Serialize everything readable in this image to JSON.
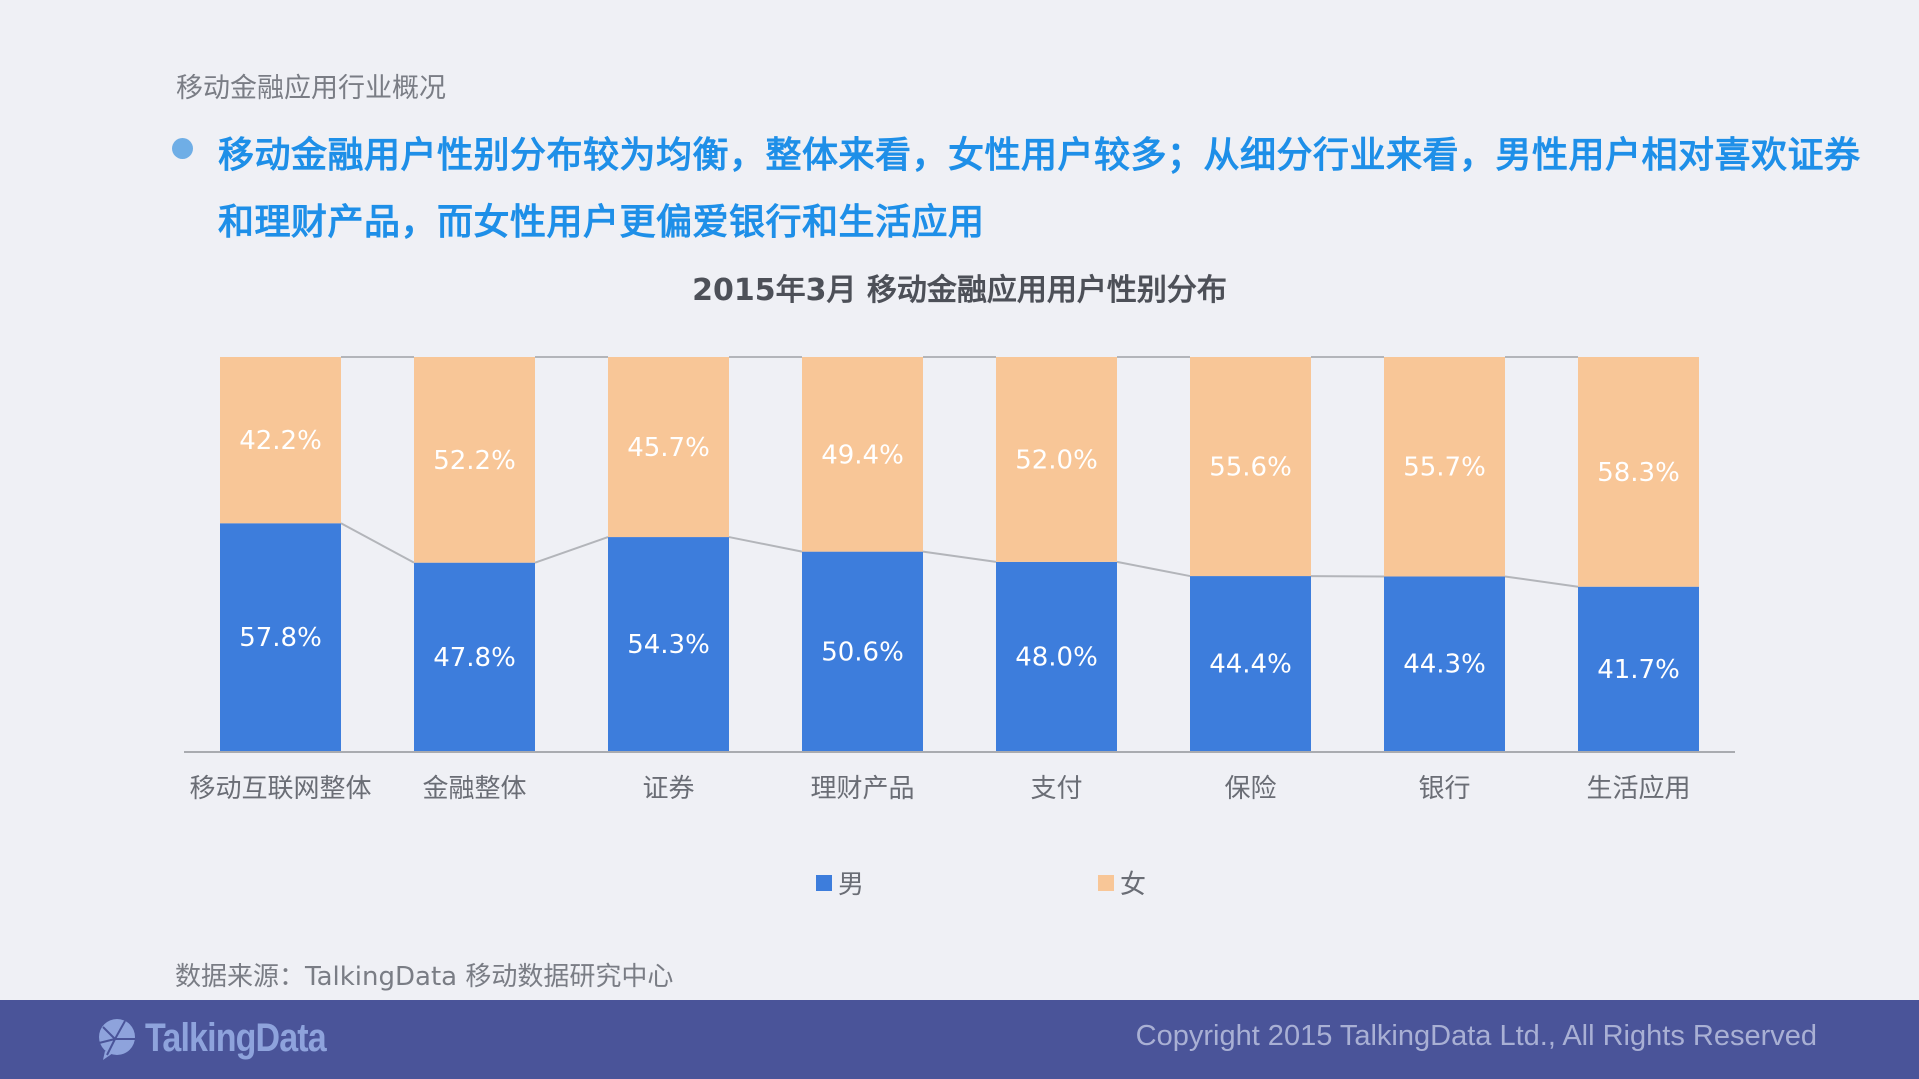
{
  "section_title": "移动金融应用行业概况",
  "headline": "移动金融用户性别分布较为均衡，整体来看，女性用户较多；从细分行业来看，男性用户相对喜欢证券和理财产品，而女性用户更偏爱银行和生活应用",
  "source": "数据来源：TalkingData 移动数据研究中心",
  "footer": {
    "logo": "TalkingData",
    "copyright": "Copyright 2015 TalkingData Ltd., All Rights Reserved"
  },
  "colors": {
    "male": "#3d7ddc",
    "female": "#f8c697",
    "accent": "#1e8fe8",
    "footer": "#4a5499"
  },
  "chart_data": {
    "type": "bar",
    "stacked": true,
    "percent": true,
    "title": "2015年3月 移动金融应用用户性别分布",
    "categories": [
      "移动互联网整体",
      "金融整体",
      "证券",
      "理财产品",
      "支付",
      "保险",
      "银行",
      "生活应用"
    ],
    "series": [
      {
        "name": "男",
        "values": [
          57.8,
          47.8,
          54.3,
          50.6,
          48.0,
          44.4,
          44.3,
          41.7
        ],
        "labels": [
          "57.8%",
          "47.8%",
          "54.3%",
          "50.6%",
          "48.0%",
          "44.4%",
          "44.3%",
          "41.7%"
        ]
      },
      {
        "name": "女",
        "values": [
          42.2,
          52.2,
          45.7,
          49.4,
          52.0,
          55.6,
          55.7,
          58.3
        ],
        "labels": [
          "42.2%",
          "52.2%",
          "45.7%",
          "49.4%",
          "52.0%",
          "55.6%",
          "55.7%",
          "58.3%"
        ]
      }
    ],
    "ylim": [
      0,
      100
    ],
    "series_lines": true,
    "legend": "bottom"
  }
}
